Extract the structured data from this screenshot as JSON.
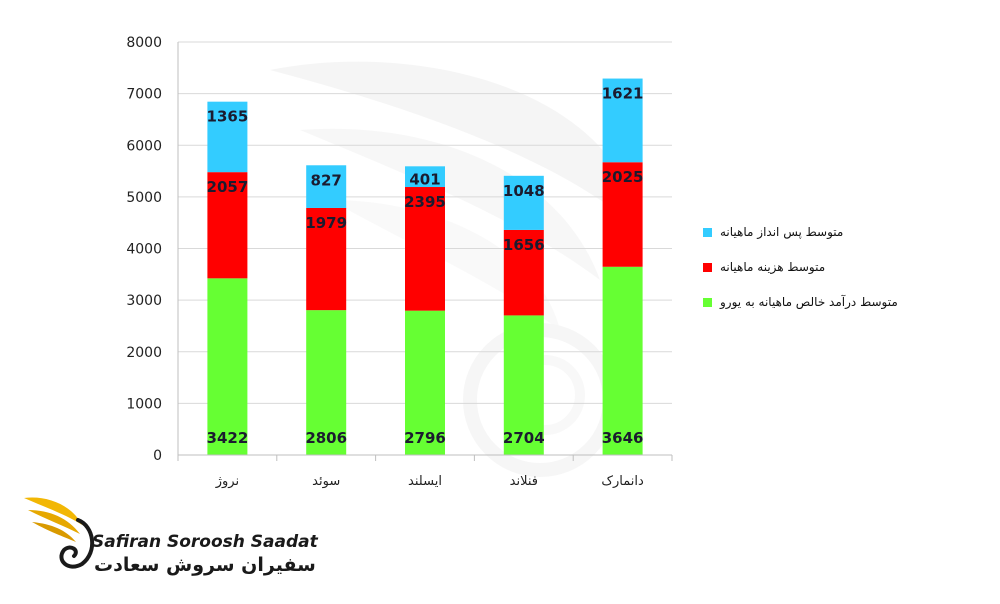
{
  "chart_data": {
    "type": "bar",
    "stacked": true,
    "categories": [
      "نروژ",
      "سوئد",
      "ایسلند",
      "فنلاند",
      "دانمارک"
    ],
    "series": [
      {
        "name": "متوسط درآمد خالص ماهیانه به یورو",
        "color": "#66ff33",
        "values": [
          3422,
          2806,
          2796,
          2704,
          3646
        ]
      },
      {
        "name": "متوسط هزینه ماهیانه",
        "color": "#ff0000",
        "values": [
          2057,
          1979,
          2395,
          1656,
          2025
        ]
      },
      {
        "name": "متوسط پس انداز ماهیانه",
        "color": "#33ccff",
        "values": [
          1365,
          827,
          401,
          1048,
          1621
        ]
      }
    ],
    "ylim": [
      0,
      8000
    ],
    "yticks": [
      0,
      1000,
      2000,
      3000,
      4000,
      5000,
      6000,
      7000,
      8000
    ],
    "grid": true,
    "legend_position": "right"
  },
  "legend": {
    "items": [
      {
        "label": "متوسط پس انداز ماهیانه",
        "color": "#33ccff"
      },
      {
        "label": "متوسط هزینه ماهیانه",
        "color": "#ff0000"
      },
      {
        "label": "متوسط درآمد خالص ماهیانه به یورو",
        "color": "#66ff33"
      }
    ]
  },
  "logo": {
    "name_en": "Safiran Soroosh Saadat",
    "name_fa": "سفیران سروش سعادت"
  }
}
